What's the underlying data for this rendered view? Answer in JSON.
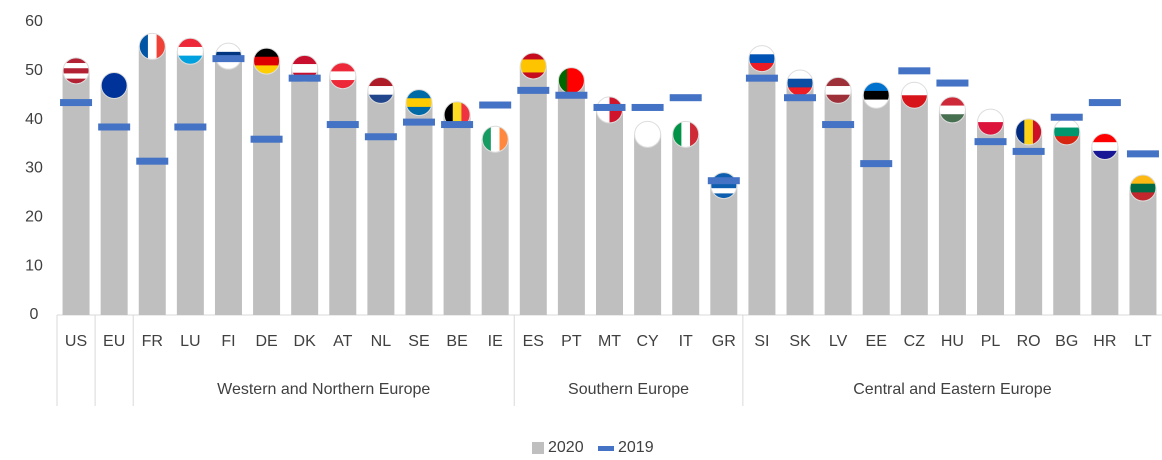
{
  "chart_data": {
    "type": "bar",
    "categories": [
      "US",
      "EU",
      "FR",
      "LU",
      "FI",
      "DE",
      "DK",
      "AT",
      "NL",
      "SE",
      "BE",
      "IE",
      "ES",
      "PT",
      "MT",
      "CY",
      "IT",
      "GR",
      "SI",
      "SK",
      "LV",
      "EE",
      "CZ",
      "HU",
      "PL",
      "RO",
      "BG",
      "HR",
      "LT"
    ],
    "series": [
      {
        "name": "2020",
        "color": "#bfbfbf",
        "values": [
          50,
          47,
          55,
          54,
          53,
          52,
          50.5,
          49,
          46,
          43.5,
          41,
          36,
          51,
          48,
          42,
          37,
          37,
          26.5,
          52.5,
          47.5,
          46,
          45,
          45,
          42,
          39.5,
          37.5,
          37.5,
          34.5,
          26
        ]
      },
      {
        "name": "2019",
        "color": "#4472c4",
        "marker": "dash",
        "values": [
          43.5,
          38.5,
          31.5,
          38.5,
          52.5,
          36,
          48.5,
          39,
          36.5,
          39.5,
          39,
          43,
          46,
          45,
          42.5,
          42.5,
          44.5,
          27.5,
          48.5,
          44.5,
          39,
          31,
          50,
          47.5,
          35.5,
          33.5,
          40.5,
          43.5,
          33
        ]
      }
    ],
    "groups": [
      {
        "label": "Western and Northern Europe",
        "first": 2,
        "last": 11
      },
      {
        "label": "Southern Europe",
        "first": 12,
        "last": 17
      },
      {
        "label": "Central and Eastern Europe",
        "first": 18,
        "last": 28
      }
    ],
    "ylim": [
      0,
      60
    ],
    "yticks": [
      0,
      10,
      20,
      30,
      40,
      50,
      60
    ],
    "grid": false,
    "legend": "bottom"
  }
}
